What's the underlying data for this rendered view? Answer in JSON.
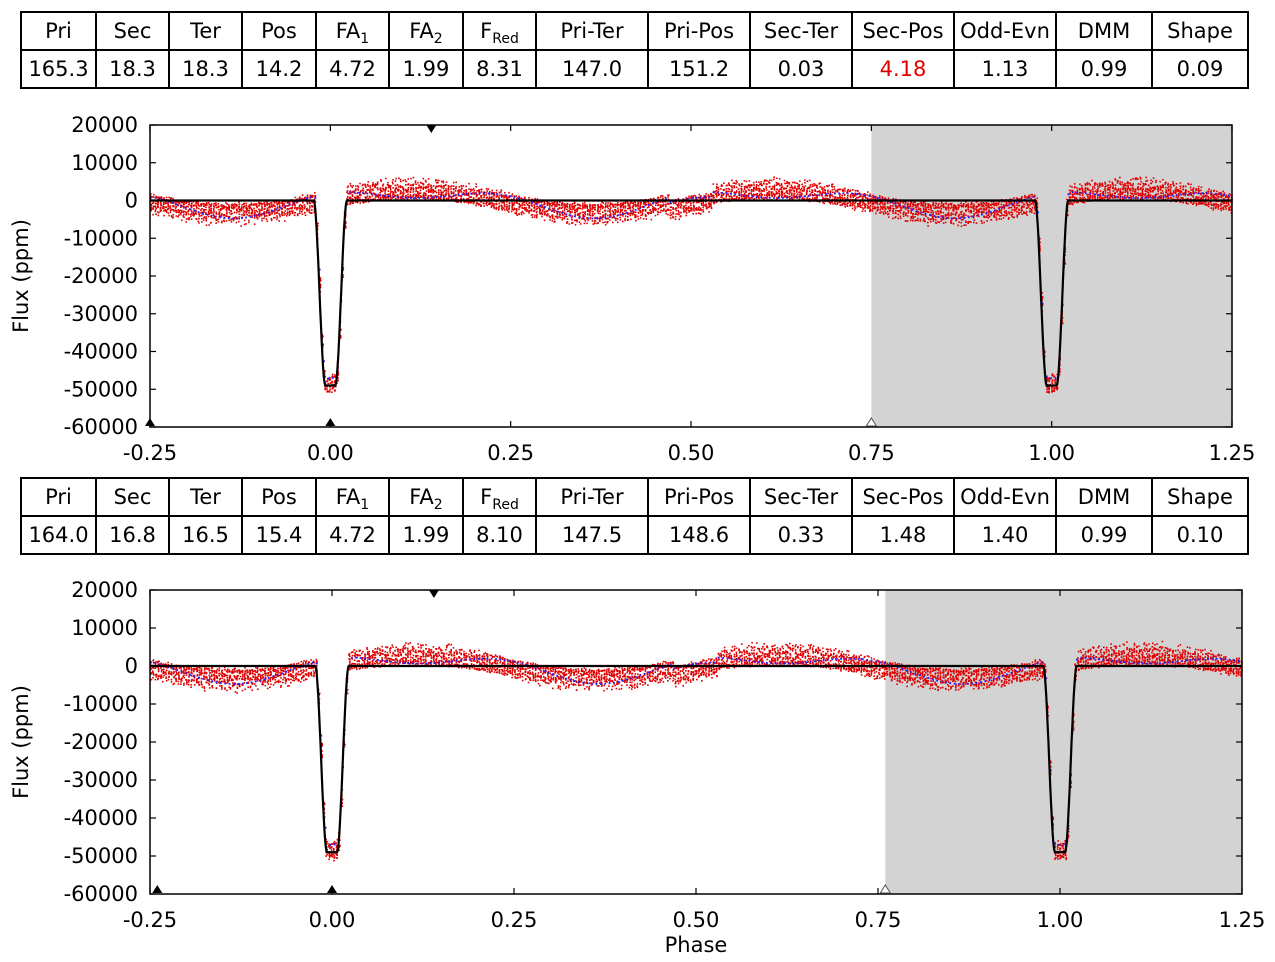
{
  "table_headers": [
    "Pri",
    "Sec",
    "Ter",
    "Pos",
    "FA",
    "FA",
    "F",
    "Pri-Ter",
    "Pri-Pos",
    "Sec-Ter",
    "Sec-Pos",
    "Odd-Evn",
    "DMM",
    "Shape"
  ],
  "header_subscripts": [
    "",
    "",
    "",
    "",
    "1",
    "2",
    "Red",
    "",
    "",
    "",
    "",
    "",
    "",
    ""
  ],
  "highlight_color": "#e00000",
  "chart_data": [
    {
      "type": "scatter",
      "title": "",
      "xlabel": "",
      "ylabel": "Flux (ppm)",
      "xlim": [
        -0.25,
        1.25
      ],
      "ylim": [
        -60000,
        20000
      ],
      "xticks": [
        "-0.25",
        "0.00",
        "0.25",
        "0.50",
        "0.75",
        "1.00",
        "1.25"
      ],
      "yticks": [
        "20000",
        "10000",
        "0",
        "-10000",
        "-20000",
        "-30000",
        "-40000",
        "-50000",
        "-60000"
      ],
      "shaded_region": [
        0.75,
        1.25
      ],
      "stats_values": [
        "165.3",
        "18.3",
        "18.3",
        "14.2",
        "4.72",
        "1.99",
        "8.31",
        "147.0",
        "151.2",
        "0.03",
        "4.18",
        "1.13",
        "0.99",
        "0.09"
      ],
      "highlighted_stats": [
        10
      ],
      "markers": [
        {
          "x": 0.14,
          "kind": "down-filled"
        },
        {
          "x": -0.25,
          "kind": "up-filled"
        },
        {
          "x": 0.0,
          "kind": "up-filled"
        },
        {
          "x": 0.75,
          "kind": "up-open"
        }
      ],
      "transit": {
        "center": 0.0,
        "depth": -49000,
        "half_width": 0.023
      },
      "series": [
        {
          "name": "data",
          "color": "#e00000"
        },
        {
          "name": "binned",
          "color": "#2020ff"
        },
        {
          "name": "model",
          "color": "#000000"
        }
      ]
    },
    {
      "type": "scatter",
      "title": "",
      "xlabel": "Phase",
      "ylabel": "Flux (ppm)",
      "xlim": [
        -0.25,
        1.25
      ],
      "ylim": [
        -60000,
        20000
      ],
      "xticks": [
        "-0.25",
        "0.00",
        "0.25",
        "0.50",
        "0.75",
        "1.00",
        "1.25"
      ],
      "yticks": [
        "20000",
        "10000",
        "0",
        "-10000",
        "-20000",
        "-30000",
        "-40000",
        "-50000",
        "-60000"
      ],
      "shaded_region": [
        0.76,
        1.25
      ],
      "stats_values": [
        "164.0",
        "16.8",
        "16.5",
        "15.4",
        "4.72",
        "1.99",
        "8.10",
        "147.5",
        "148.6",
        "0.33",
        "1.48",
        "1.40",
        "0.99",
        "0.10"
      ],
      "highlighted_stats": [],
      "markers": [
        {
          "x": 0.14,
          "kind": "down-filled"
        },
        {
          "x": -0.24,
          "kind": "up-filled"
        },
        {
          "x": 0.0,
          "kind": "up-filled"
        },
        {
          "x": 0.76,
          "kind": "up-open"
        }
      ],
      "transit": {
        "center": 0.0,
        "depth": -49000,
        "half_width": 0.023
      },
      "series": [
        {
          "name": "data",
          "color": "#e00000"
        },
        {
          "name": "binned",
          "color": "#2020ff"
        },
        {
          "name": "model",
          "color": "#000000"
        }
      ]
    }
  ]
}
